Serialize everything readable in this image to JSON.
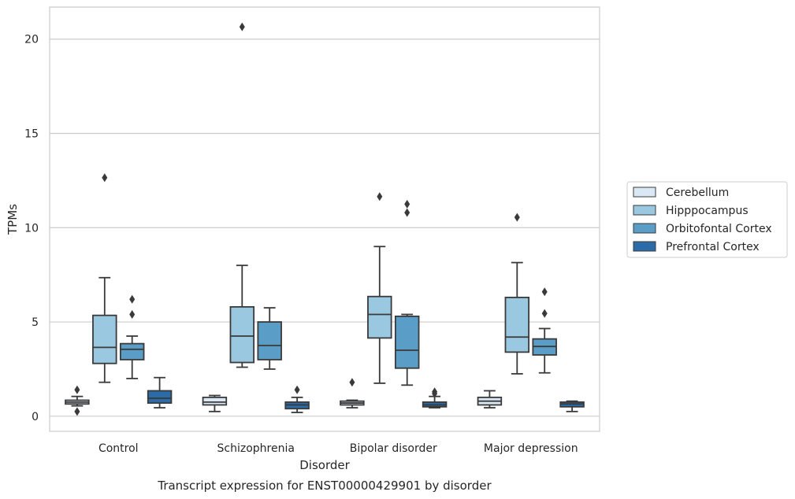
{
  "chart_data": {
    "type": "box",
    "title": "",
    "caption": "Transcript expression for ENST00000429901 by disorder",
    "xlabel": "Disorder",
    "ylabel": "TPMs",
    "ylim": [
      -0.8,
      21.7
    ],
    "yticks": [
      0,
      5,
      10,
      15,
      20
    ],
    "grid": "horizontal",
    "legend_position": "right",
    "categories": [
      "Control",
      "Schizophrenia",
      "Bipolar disorder",
      "Major depression"
    ],
    "series": [
      {
        "name": "Cerebellum",
        "color": "#dae8f5",
        "boxes": [
          {
            "whisker_low": 0.55,
            "q1": 0.65,
            "median": 0.75,
            "q3": 0.85,
            "whisker_high": 1.05,
            "outliers": [
              1.4,
              0.25
            ]
          },
          {
            "whisker_low": 0.25,
            "q1": 0.6,
            "median": 0.75,
            "q3": 1.0,
            "whisker_high": 1.1,
            "outliers": []
          },
          {
            "whisker_low": 0.45,
            "q1": 0.6,
            "median": 0.7,
            "q3": 0.8,
            "whisker_high": 0.85,
            "outliers": [
              1.8
            ]
          },
          {
            "whisker_low": 0.45,
            "q1": 0.6,
            "median": 0.8,
            "q3": 1.0,
            "whisker_high": 1.35,
            "outliers": []
          }
        ]
      },
      {
        "name": "Hipppocampus",
        "color": "#9ac8e0",
        "boxes": [
          {
            "whisker_low": 1.8,
            "q1": 2.8,
            "median": 3.65,
            "q3": 5.35,
            "whisker_high": 7.35,
            "outliers": [
              12.65
            ]
          },
          {
            "whisker_low": 2.6,
            "q1": 2.85,
            "median": 4.25,
            "q3": 5.8,
            "whisker_high": 8.0,
            "outliers": [
              20.65
            ]
          },
          {
            "whisker_low": 1.75,
            "q1": 4.15,
            "median": 5.4,
            "q3": 6.35,
            "whisker_high": 9.0,
            "outliers": [
              11.65
            ]
          },
          {
            "whisker_low": 2.25,
            "q1": 3.4,
            "median": 4.2,
            "q3": 6.3,
            "whisker_high": 8.15,
            "outliers": [
              10.55
            ]
          }
        ]
      },
      {
        "name": "Orbitofontal Cortex",
        "color": "#5a9ec8",
        "boxes": [
          {
            "whisker_low": 2.0,
            "q1": 3.0,
            "median": 3.55,
            "q3": 3.85,
            "whisker_high": 4.25,
            "outliers": [
              6.2,
              5.4
            ]
          },
          {
            "whisker_low": 2.5,
            "q1": 3.0,
            "median": 3.75,
            "q3": 5.0,
            "whisker_high": 5.75,
            "outliers": []
          },
          {
            "whisker_low": 1.65,
            "q1": 2.55,
            "median": 3.5,
            "q3": 5.3,
            "whisker_high": 5.4,
            "outliers": [
              11.25,
              10.8
            ]
          },
          {
            "whisker_low": 2.3,
            "q1": 3.25,
            "median": 3.7,
            "q3": 4.1,
            "whisker_high": 4.65,
            "outliers": [
              6.6,
              5.45
            ]
          }
        ]
      },
      {
        "name": "Prefrontal Cortex",
        "color": "#2b6ca8",
        "boxes": [
          {
            "whisker_low": 0.45,
            "q1": 0.7,
            "median": 0.95,
            "q3": 1.35,
            "whisker_high": 2.05,
            "outliers": []
          },
          {
            "whisker_low": 0.2,
            "q1": 0.4,
            "median": 0.6,
            "q3": 0.75,
            "whisker_high": 1.0,
            "outliers": [
              1.4
            ]
          },
          {
            "whisker_low": 0.45,
            "q1": 0.5,
            "median": 0.6,
            "q3": 0.75,
            "whisker_high": 1.05,
            "outliers": [
              1.3,
              1.2
            ]
          },
          {
            "whisker_low": 0.25,
            "q1": 0.5,
            "median": 0.65,
            "q3": 0.75,
            "whisker_high": 0.8,
            "outliers": []
          }
        ]
      }
    ]
  }
}
